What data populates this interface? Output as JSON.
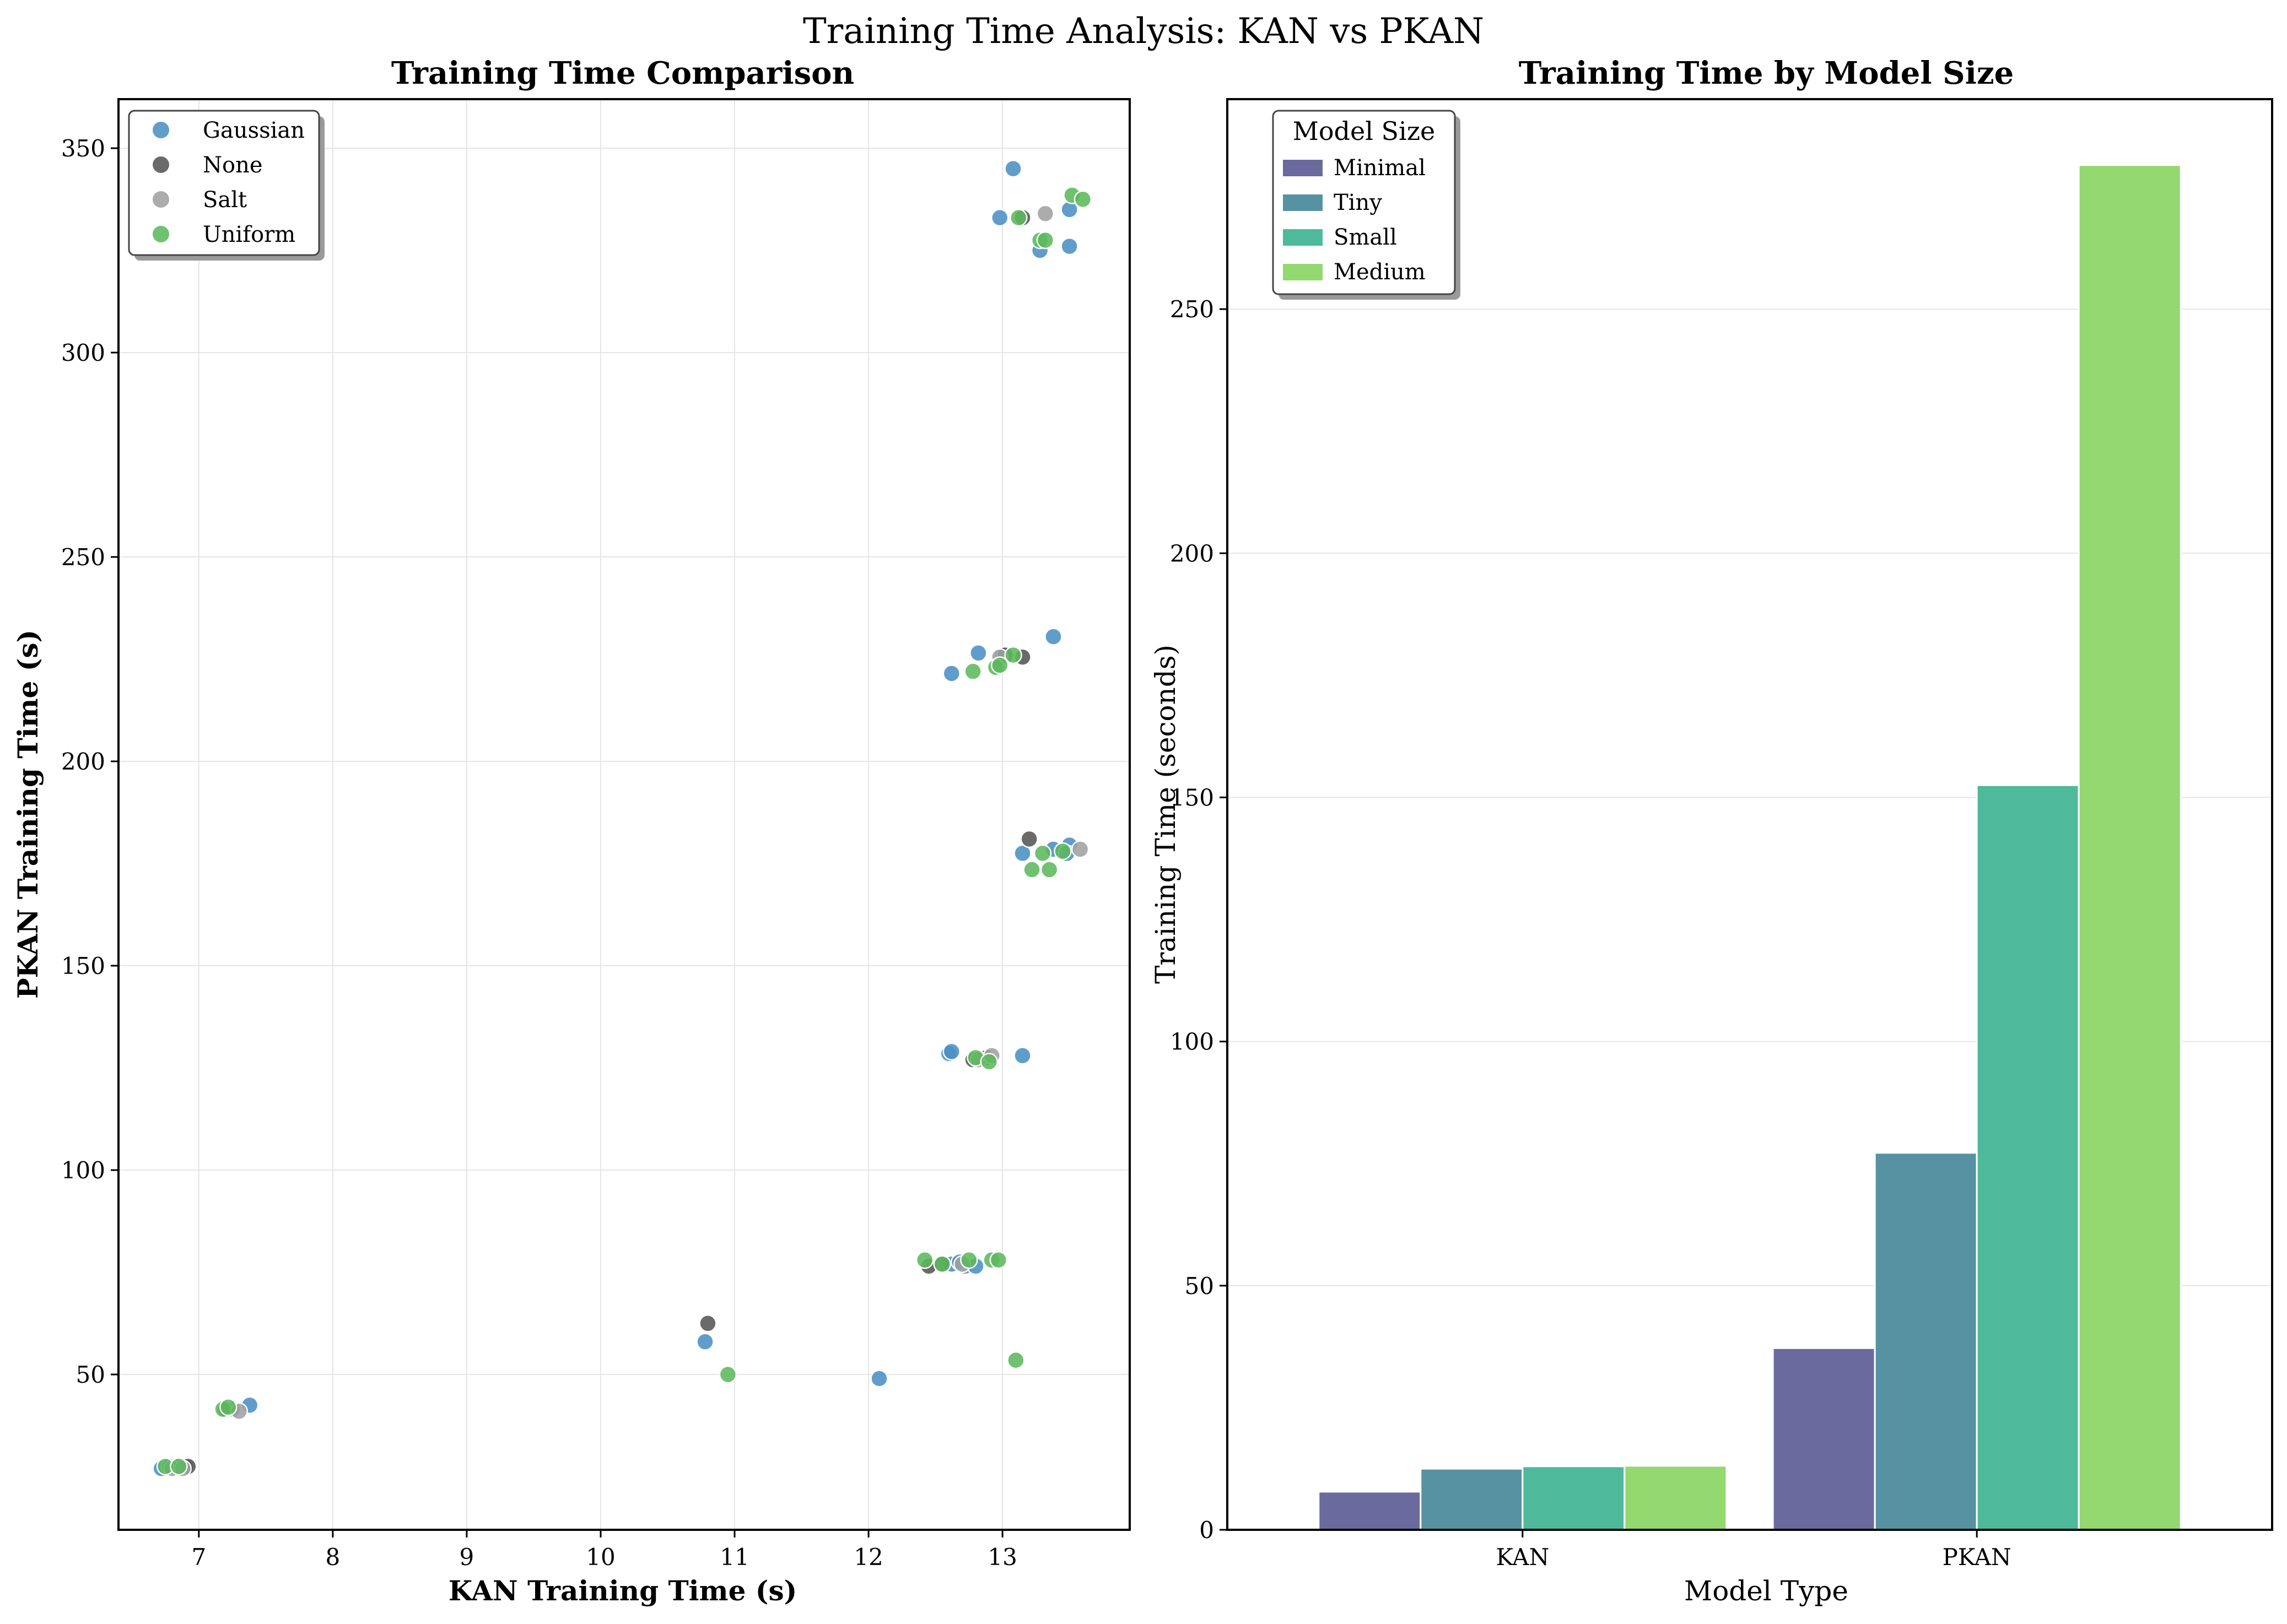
{
  "figure": {
    "suptitle": "Training Time Analysis: KAN vs PKAN"
  },
  "chart_data": [
    {
      "type": "scatter",
      "title": "Training Time Comparison",
      "xlabel": "KAN Training Time (s)",
      "ylabel": "PKAN Training Time (s)",
      "xlim": [
        6.4,
        13.95
      ],
      "ylim": [
        12,
        362
      ],
      "xticks": [
        7,
        8,
        9,
        10,
        11,
        12,
        13
      ],
      "yticks": [
        50,
        100,
        150,
        200,
        250,
        300,
        350
      ],
      "grid": true,
      "legend_position": "upper-left",
      "series": [
        {
          "name": "Gaussian",
          "color": "#4a8fc4",
          "points": [
            [
              6.72,
              27
            ],
            [
              6.78,
              27.5
            ],
            [
              6.85,
              27
            ],
            [
              6.9,
              27.5
            ],
            [
              7.25,
              41.5
            ],
            [
              7.38,
              42.5
            ],
            [
              10.78,
              58
            ],
            [
              12.08,
              49
            ],
            [
              12.6,
              128.5
            ],
            [
              12.62,
              129
            ],
            [
              13.15,
              128
            ],
            [
              12.62,
              77
            ],
            [
              12.72,
              76.5
            ],
            [
              12.8,
              76.5
            ],
            [
              12.68,
              77.5
            ],
            [
              12.62,
              221.5
            ],
            [
              12.82,
              226.5
            ],
            [
              13.38,
              230.5
            ],
            [
              13.0,
              226
            ],
            [
              13.15,
              177.5
            ],
            [
              13.38,
              178.5
            ],
            [
              13.5,
              179.5
            ],
            [
              13.48,
              177.5
            ],
            [
              12.98,
              333
            ],
            [
              13.08,
              345
            ],
            [
              13.28,
              325
            ],
            [
              13.5,
              326
            ],
            [
              13.5,
              335
            ]
          ]
        },
        {
          "name": "None",
          "color": "#555555",
          "points": [
            [
              6.92,
              27.5
            ],
            [
              6.85,
              27.5
            ],
            [
              7.2,
              41.5
            ],
            [
              10.8,
              62.5
            ],
            [
              12.45,
              76.5
            ],
            [
              12.55,
              77
            ],
            [
              12.78,
              127
            ],
            [
              12.88,
              127.5
            ],
            [
              13.02,
              226
            ],
            [
              13.15,
              225.5
            ],
            [
              13.2,
              181
            ],
            [
              13.15,
              333
            ]
          ]
        },
        {
          "name": "Salt",
          "color": "#a0a0a0",
          "points": [
            [
              6.8,
              27
            ],
            [
              6.88,
              27
            ],
            [
              7.3,
              41
            ],
            [
              12.7,
              77
            ],
            [
              12.82,
              127
            ],
            [
              12.92,
              128
            ],
            [
              12.98,
              225.5
            ],
            [
              13.58,
              178.5
            ],
            [
              13.32,
              334
            ]
          ]
        },
        {
          "name": "Uniform",
          "color": "#5cb85c",
          "points": [
            [
              6.75,
              27.5
            ],
            [
              6.85,
              27.5
            ],
            [
              7.18,
              41.5
            ],
            [
              7.22,
              42
            ],
            [
              10.95,
              50
            ],
            [
              13.1,
              53.5
            ],
            [
              12.42,
              78
            ],
            [
              12.55,
              77
            ],
            [
              12.75,
              78
            ],
            [
              12.92,
              78
            ],
            [
              12.97,
              78
            ],
            [
              12.8,
              127.5
            ],
            [
              12.9,
              126.5
            ],
            [
              12.78,
              222
            ],
            [
              12.95,
              223
            ],
            [
              12.98,
              223.5
            ],
            [
              13.08,
              226
            ],
            [
              13.22,
              173.5
            ],
            [
              13.35,
              173.5
            ],
            [
              13.3,
              177.5
            ],
            [
              13.45,
              178
            ],
            [
              13.12,
              333
            ],
            [
              13.28,
              327.5
            ],
            [
              13.32,
              327.5
            ],
            [
              13.52,
              338.5
            ],
            [
              13.6,
              337.5
            ]
          ]
        }
      ]
    },
    {
      "type": "bar",
      "title": "Training Time by Model Size",
      "xlabel": "Model Type",
      "ylabel": "Training Time (seconds)",
      "categories": [
        "KAN",
        "PKAN"
      ],
      "ylim": [
        0,
        293
      ],
      "yticks": [
        0,
        50,
        100,
        150,
        200,
        250
      ],
      "grid": true,
      "legend_title": "Model Size",
      "legend_position": "upper-left",
      "series": [
        {
          "name": "Minimal",
          "color": "#6a6a9e",
          "values": [
            7.8,
            37.2
          ]
        },
        {
          "name": "Tiny",
          "color": "#5692a2",
          "values": [
            12.5,
            77.2
          ]
        },
        {
          "name": "Small",
          "color": "#4fb99b",
          "values": [
            13.0,
            152.5
          ]
        },
        {
          "name": "Medium",
          "color": "#94d870",
          "values": [
            13.1,
            279.5
          ]
        }
      ]
    }
  ]
}
